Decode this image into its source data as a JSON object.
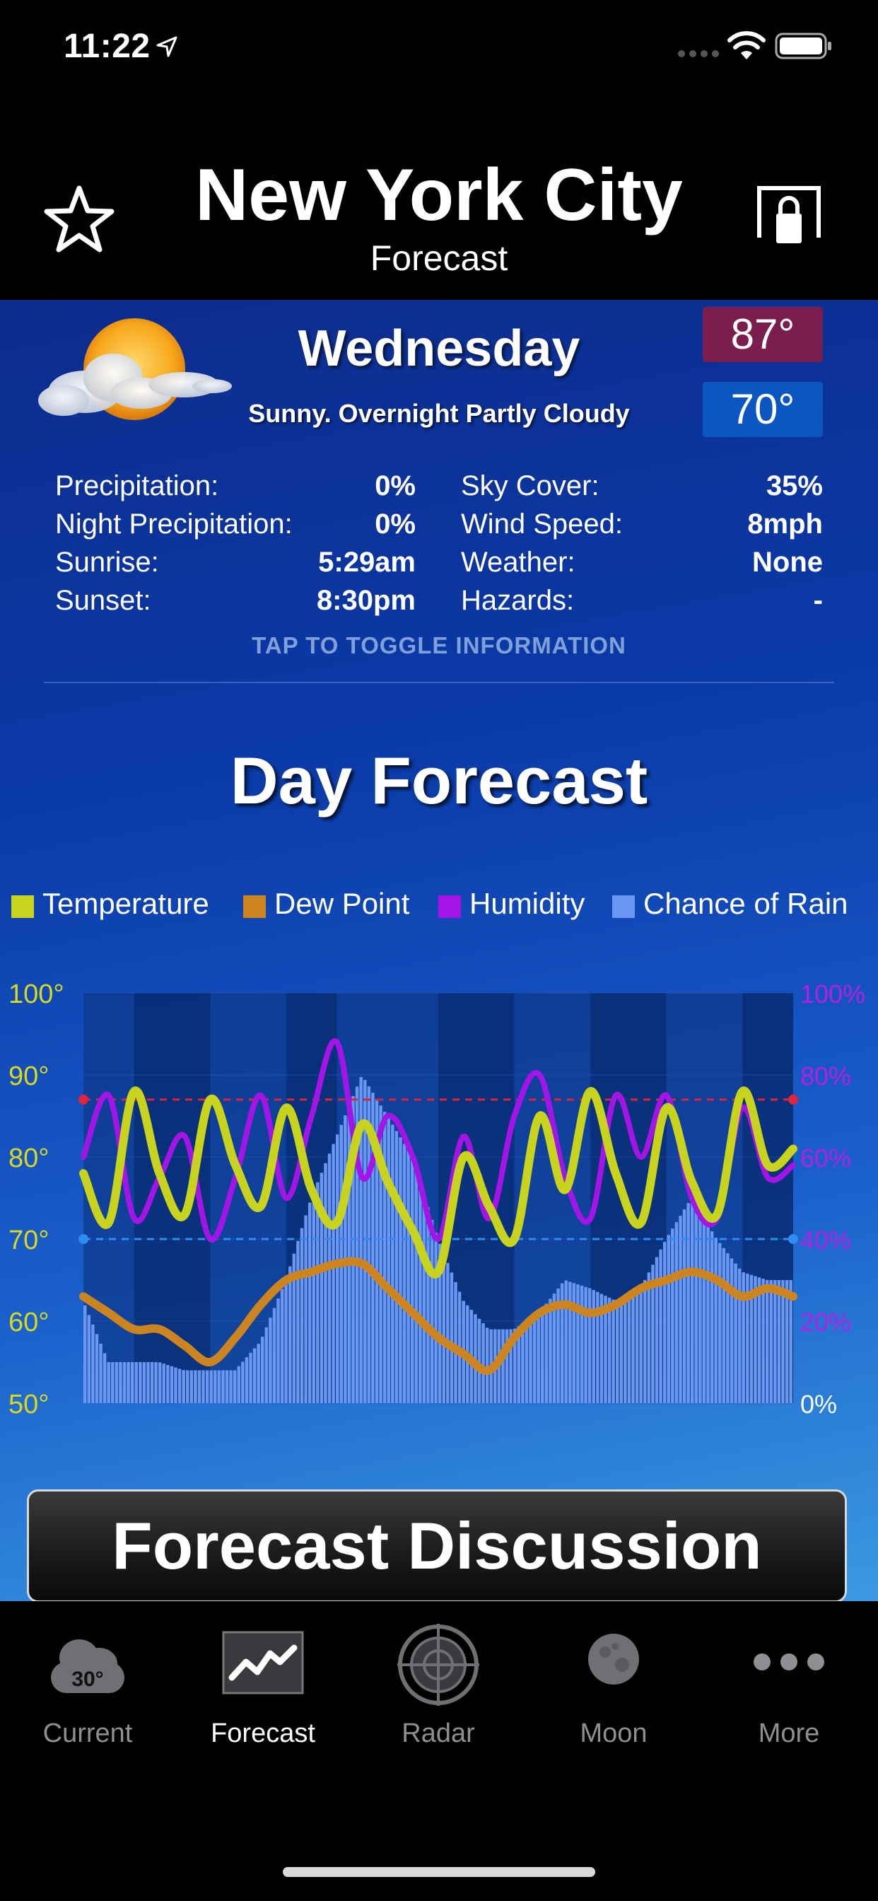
{
  "status": {
    "time": "11:22"
  },
  "header": {
    "city": "New York City",
    "subtitle": "Forecast"
  },
  "day": {
    "name": "Wednesday",
    "description": "Sunny. Overnight Partly Cloudy",
    "high": "87°",
    "low": "70°"
  },
  "info": [
    {
      "label1": "Precipitation:",
      "value1": "0%",
      "label2": "Sky Cover:",
      "value2": "35%"
    },
    {
      "label1": "Night Precipitation:",
      "value1": "0%",
      "label2": "Wind Speed:",
      "value2": "8mph"
    },
    {
      "label1": "Sunrise:",
      "value1": "5:29am",
      "label2": "Weather:",
      "value2": "None"
    },
    {
      "label1": "Sunset:",
      "value1": "8:30pm",
      "label2": "Hazards:",
      "value2": "-"
    }
  ],
  "toggle_hint": "TAP TO TOGGLE INFORMATION",
  "day_forecast_title": "Day Forecast",
  "legend": [
    {
      "name": "Temperature",
      "color": "#c8d31e"
    },
    {
      "name": "Dew Point",
      "color": "#cc8420"
    },
    {
      "name": "Humidity",
      "color": "#a315e6"
    },
    {
      "name": "Chance of Rain",
      "color": "#6a97f2"
    }
  ],
  "chart_data": {
    "type": "line",
    "x_hours": [
      0,
      6,
      12,
      18,
      24,
      30,
      36,
      42,
      48,
      54,
      60,
      66,
      72,
      78,
      84,
      90,
      96,
      102,
      108,
      114,
      120,
      126,
      132,
      138,
      144,
      150,
      156,
      162,
      168
    ],
    "series": [
      {
        "name": "Temperature",
        "axis": "left",
        "unit": "°",
        "color": "#c8d31e",
        "values": [
          78,
          72,
          88,
          78,
          73,
          87,
          79,
          74,
          86,
          76,
          72,
          84,
          77,
          71,
          66,
          80,
          74,
          70,
          85,
          76,
          88,
          78,
          72,
          86,
          77,
          73,
          88,
          79,
          81
        ]
      },
      {
        "name": "Dew Point",
        "axis": "left",
        "unit": "°",
        "color": "#cc8420",
        "values": [
          63,
          61,
          59,
          59,
          57,
          55,
          58,
          62,
          65,
          66,
          67,
          67,
          64,
          61,
          58,
          56,
          54,
          58,
          61,
          62,
          61,
          62,
          64,
          65,
          66,
          65,
          63,
          64,
          63
        ]
      },
      {
        "name": "Humidity",
        "axis": "right",
        "unit": "%",
        "color": "#a315e6",
        "values": [
          60,
          75,
          45,
          55,
          65,
          40,
          55,
          75,
          50,
          70,
          88,
          55,
          70,
          60,
          40,
          65,
          45,
          70,
          80,
          55,
          45,
          75,
          60,
          75,
          50,
          45,
          72,
          55,
          58
        ]
      },
      {
        "name": "Chance of Rain",
        "axis": "right",
        "unit": "%",
        "color": "#6a97f2",
        "values": [
          25,
          10,
          10,
          10,
          8,
          8,
          8,
          15,
          30,
          50,
          65,
          80,
          70,
          60,
          40,
          25,
          18,
          18,
          22,
          30,
          28,
          25,
          28,
          40,
          50,
          40,
          32,
          30,
          30
        ]
      }
    ],
    "left_axis": {
      "ticks": [
        "100°",
        "90°",
        "80°",
        "70°",
        "60°",
        "50°"
      ],
      "range": [
        50,
        100
      ]
    },
    "right_axis": {
      "ticks": [
        "100%",
        "80%",
        "60%",
        "40%",
        "20%",
        "0%"
      ],
      "range": [
        0,
        100
      ]
    },
    "reference_lines": {
      "high": 87,
      "low": 70
    },
    "grid": true
  },
  "discussion_button": "Forecast Discussion",
  "tabs": [
    {
      "label": "Current",
      "icon": "cloud-temp-icon",
      "badge": "30°",
      "active": false
    },
    {
      "label": "Forecast",
      "icon": "forecast-chart-icon",
      "active": true
    },
    {
      "label": "Radar",
      "icon": "radar-icon",
      "active": false
    },
    {
      "label": "Moon",
      "icon": "moon-icon",
      "active": false
    },
    {
      "label": "More",
      "icon": "more-dots-icon",
      "active": false
    }
  ]
}
